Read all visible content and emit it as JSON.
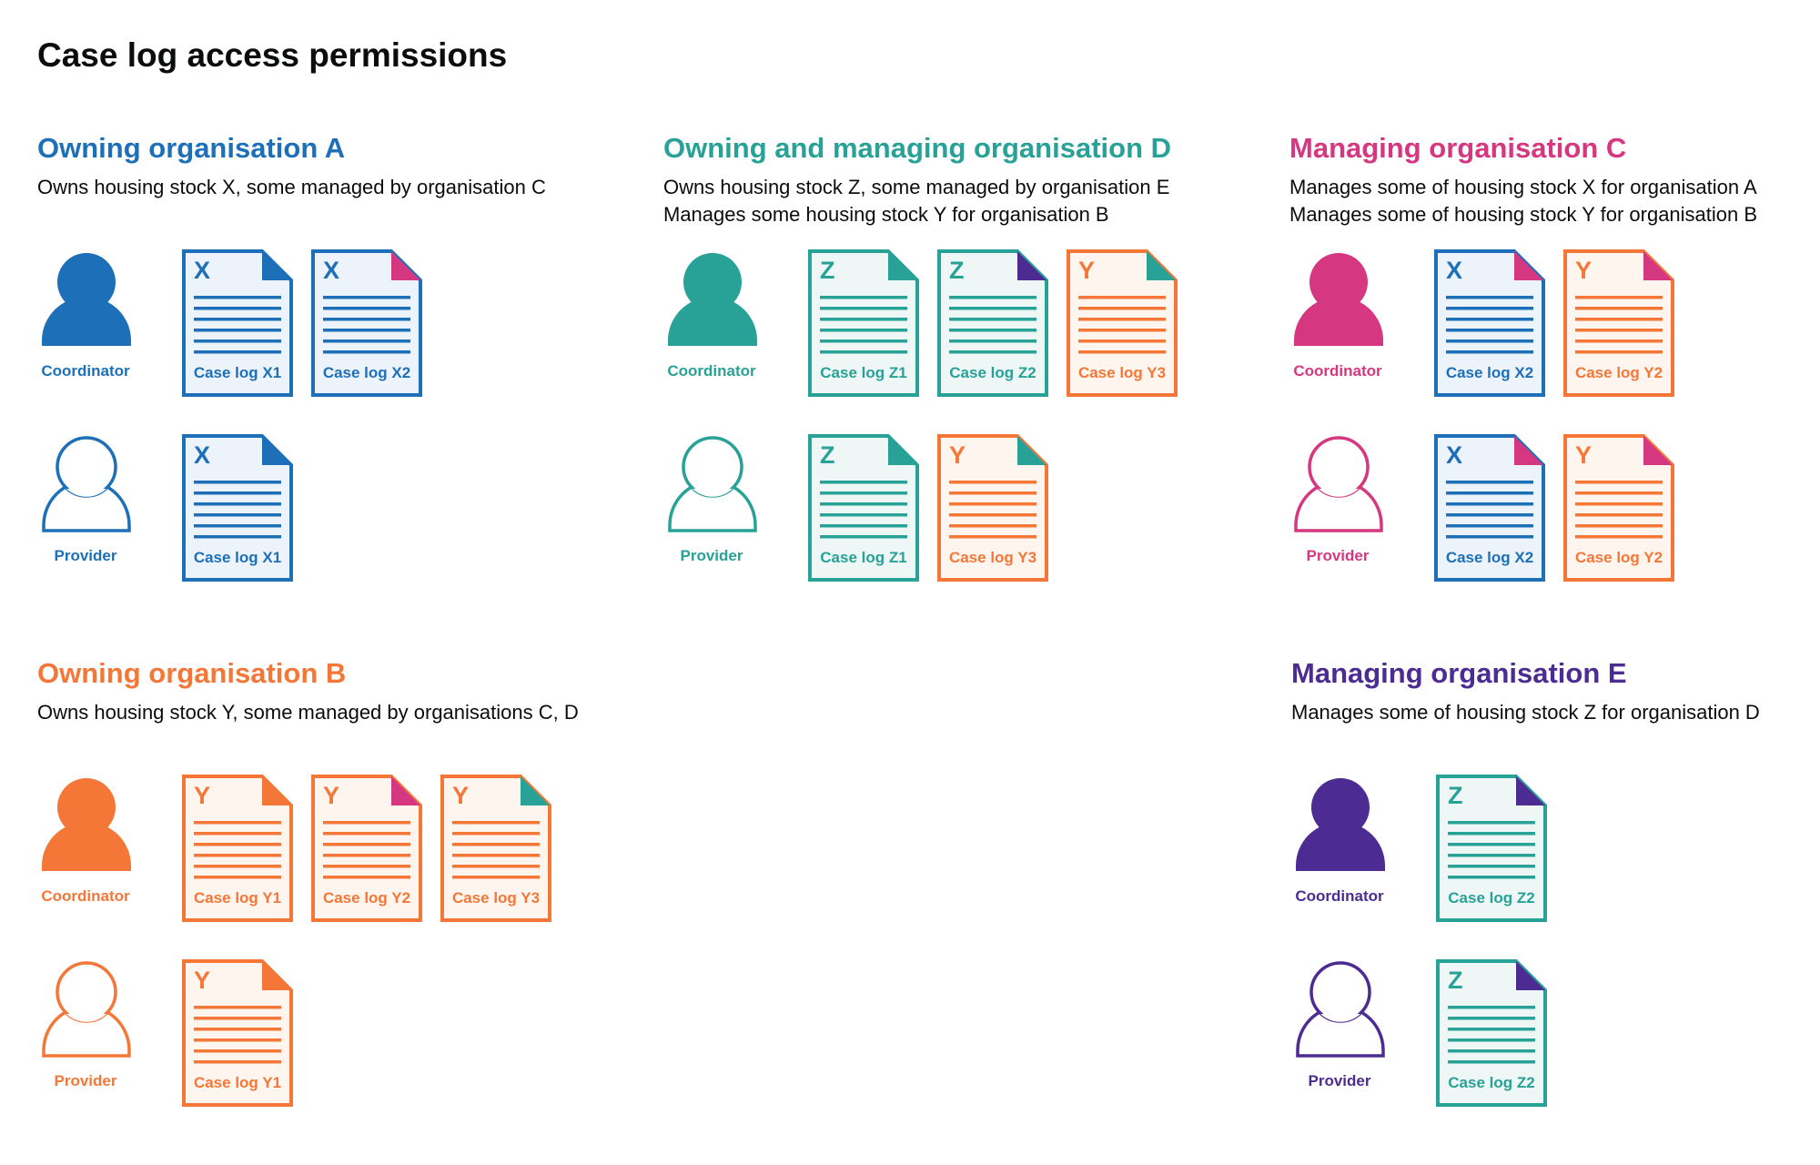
{
  "title": "Case log access permissions",
  "colors": {
    "blue": "#1d70b8",
    "teal": "#28a197",
    "pink": "#d53880",
    "orange": "#f47738",
    "purple": "#4c2c92"
  },
  "tints": {
    "blue": "#edf3fa",
    "teal": "#eef7f6",
    "pink": "#fbeef4",
    "orange": "#fef5ef",
    "purple": "#f1eef7"
  },
  "sections": [
    {
      "id": "a",
      "heading": "Owning organisation A",
      "color": "blue",
      "description": [
        "Owns housing stock X, some managed by organisation C"
      ],
      "rows": [
        {
          "role": "Coordinator",
          "filled": true,
          "docs": [
            {
              "letter": "X",
              "label": "Case log X1",
              "color": "blue",
              "corner": "blue"
            },
            {
              "letter": "X",
              "label": "Case log X2",
              "color": "blue",
              "corner": "pink"
            }
          ]
        },
        {
          "role": "Provider",
          "filled": false,
          "docs": [
            {
              "letter": "X",
              "label": "Case log X1",
              "color": "blue",
              "corner": "blue"
            }
          ]
        }
      ]
    },
    {
      "id": "d",
      "heading": "Owning and managing organisation D",
      "color": "teal",
      "description": [
        "Owns housing stock Z, some managed by organisation E",
        "Manages some housing stock Y for organisation B"
      ],
      "rows": [
        {
          "role": "Coordinator",
          "filled": true,
          "docs": [
            {
              "letter": "Z",
              "label": "Case log Z1",
              "color": "teal",
              "corner": "teal"
            },
            {
              "letter": "Z",
              "label": "Case log Z2",
              "color": "teal",
              "corner": "purple"
            },
            {
              "letter": "Y",
              "label": "Case log Y3",
              "color": "orange",
              "corner": "teal"
            }
          ]
        },
        {
          "role": "Provider",
          "filled": false,
          "docs": [
            {
              "letter": "Z",
              "label": "Case log Z1",
              "color": "teal",
              "corner": "teal"
            },
            {
              "letter": "Y",
              "label": "Case log Y3",
              "color": "orange",
              "corner": "teal"
            }
          ]
        }
      ]
    },
    {
      "id": "c",
      "heading": "Managing organisation C",
      "color": "pink",
      "description": [
        "Manages some of housing stock X for organisation A",
        "Manages some of housing stock Y for organisation B"
      ],
      "rows": [
        {
          "role": "Coordinator",
          "filled": true,
          "docs": [
            {
              "letter": "X",
              "label": "Case log X2",
              "color": "blue",
              "corner": "pink"
            },
            {
              "letter": "Y",
              "label": "Case log Y2",
              "color": "orange",
              "corner": "pink"
            }
          ]
        },
        {
          "role": "Provider",
          "filled": false,
          "docs": [
            {
              "letter": "X",
              "label": "Case log X2",
              "color": "blue",
              "corner": "pink"
            },
            {
              "letter": "Y",
              "label": "Case log Y2",
              "color": "orange",
              "corner": "pink"
            }
          ]
        }
      ]
    },
    {
      "id": "b",
      "heading": "Owning organisation B",
      "color": "orange",
      "description": [
        "Owns housing stock Y, some managed by organisations C, D"
      ],
      "rows": [
        {
          "role": "Coordinator",
          "filled": true,
          "docs": [
            {
              "letter": "Y",
              "label": "Case log Y1",
              "color": "orange",
              "corner": "orange"
            },
            {
              "letter": "Y",
              "label": "Case log Y2",
              "color": "orange",
              "corner": "pink"
            },
            {
              "letter": "Y",
              "label": "Case log Y3",
              "color": "orange",
              "corner": "teal"
            }
          ]
        },
        {
          "role": "Provider",
          "filled": false,
          "docs": [
            {
              "letter": "Y",
              "label": "Case log Y1",
              "color": "orange",
              "corner": "orange"
            }
          ]
        }
      ]
    },
    {
      "id": "e",
      "heading": "Managing organisation E",
      "color": "purple",
      "description": [
        "Manages some of housing stock Z for organisation D"
      ],
      "rows": [
        {
          "role": "Coordinator",
          "filled": true,
          "docs": [
            {
              "letter": "Z",
              "label": "Case log Z2",
              "color": "teal",
              "corner": "purple"
            }
          ]
        },
        {
          "role": "Provider",
          "filled": false,
          "docs": [
            {
              "letter": "Z",
              "label": "Case log Z2",
              "color": "teal",
              "corner": "purple"
            }
          ]
        }
      ]
    }
  ]
}
